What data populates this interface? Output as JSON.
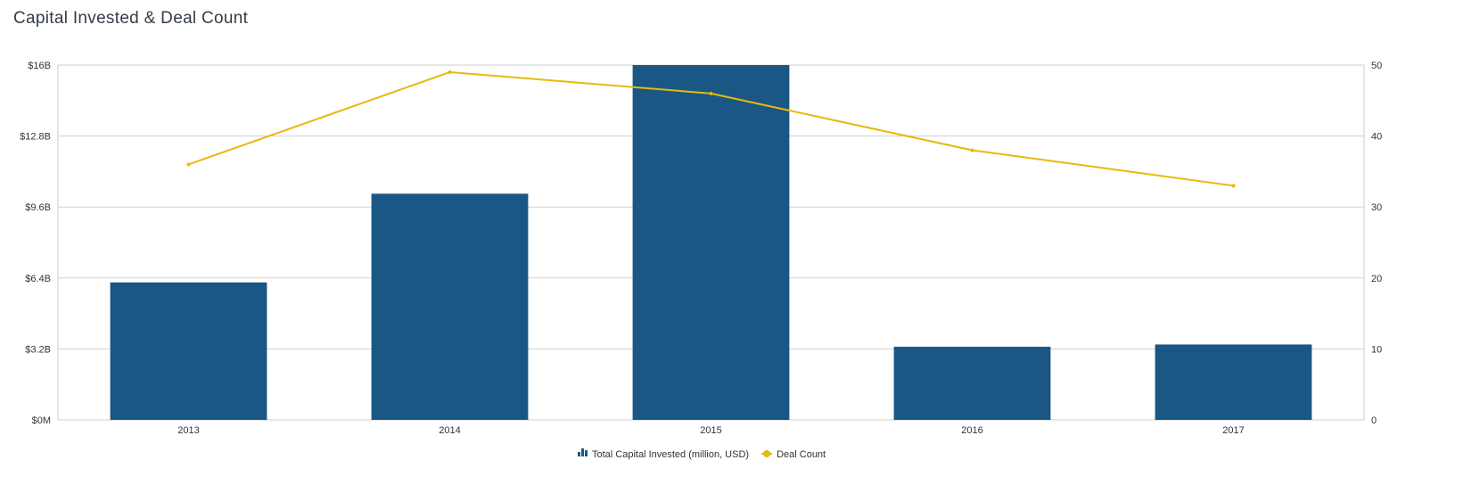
{
  "page": {
    "title": "Capital Invested & Deal Count"
  },
  "chart_data": {
    "type": "bar",
    "categories": [
      "2013",
      "2014",
      "2015",
      "2016",
      "2017"
    ],
    "series": [
      {
        "name": "Total Capital Invested (million, USD)",
        "type": "bar",
        "axis": "left",
        "color": "#1a5784",
        "values": [
          6200,
          10200,
          16000,
          3300,
          3400
        ]
      },
      {
        "name": "Deal Count",
        "type": "line",
        "axis": "right",
        "color": "#e8b80e",
        "values": [
          36,
          49,
          46,
          38,
          33
        ]
      }
    ],
    "y_left": {
      "min": 0,
      "max": 16000,
      "ticks": [
        0,
        3200,
        6400,
        9600,
        12800,
        16000
      ],
      "tick_labels": [
        "$0M",
        "$3.2B",
        "$6.4B",
        "$9.6B",
        "$12.8B",
        "$16B"
      ]
    },
    "y_right": {
      "min": 0,
      "max": 50,
      "ticks": [
        0,
        10,
        20,
        30,
        40,
        50
      ],
      "tick_labels": [
        "0",
        "10",
        "20",
        "30",
        "40",
        "50"
      ]
    },
    "grid": true,
    "legend": "bottom-center",
    "colors": {
      "grid": "#d0d0d0",
      "axis": "#cccccc",
      "legend_icon_bar": "#1a5784",
      "legend_icon_line": "#e8b80e"
    }
  }
}
